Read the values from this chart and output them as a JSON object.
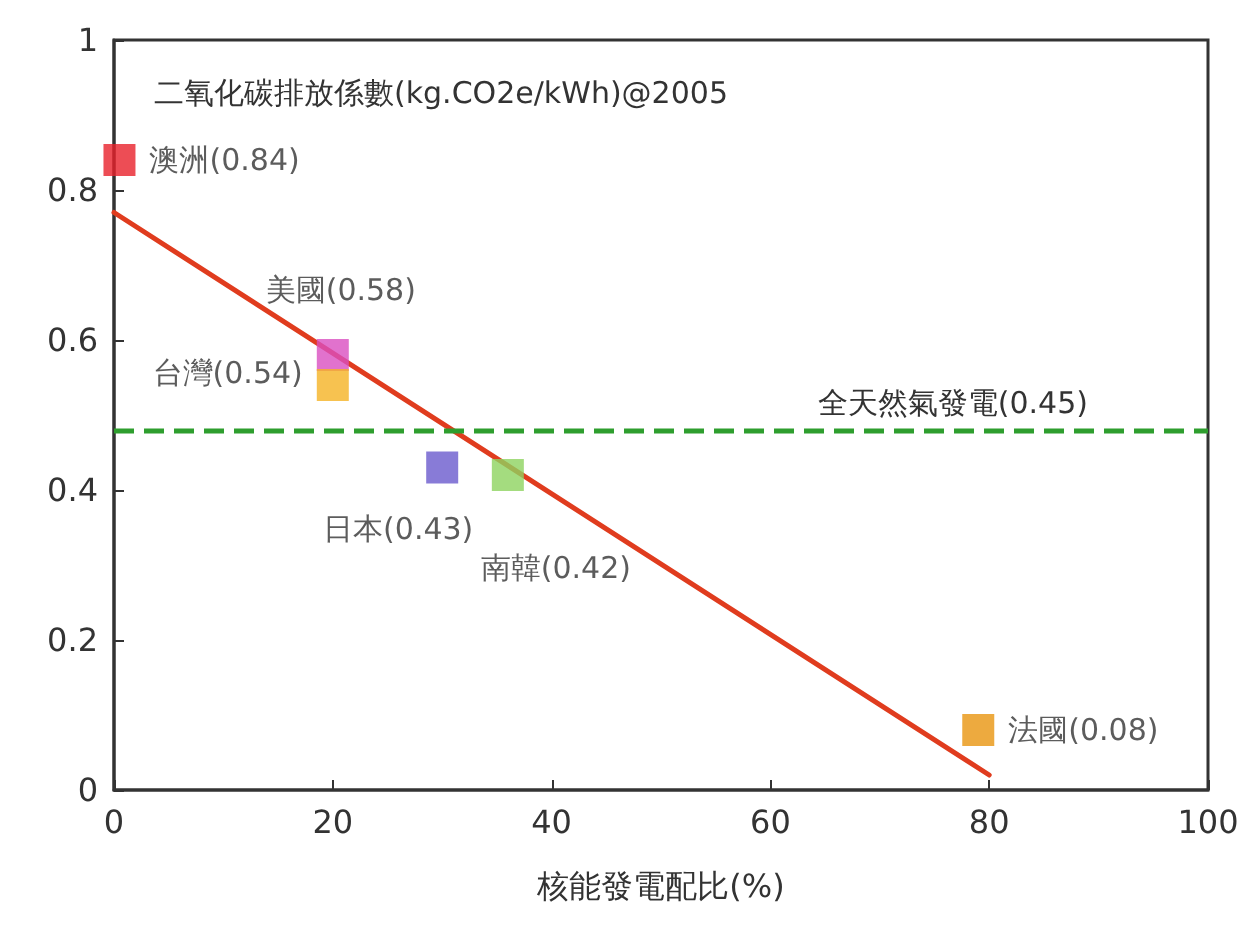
{
  "chart_data": {
    "type": "scatter",
    "title": "二氧化碳排放係數(kg.CO2e/kWh)@2005",
    "xlabel": "核能發電配比(%)",
    "xlim": [
      0,
      100
    ],
    "xticks": [
      0,
      20,
      40,
      60,
      80,
      100
    ],
    "ylim": [
      0,
      1
    ],
    "yticks": [
      0,
      {
        "value": 0.2,
        "label": "0.2"
      },
      {
        "value": 0.4,
        "label": "0.4"
      },
      {
        "value": 0.6,
        "label": "0.6"
      },
      {
        "value": 0.8,
        "label": "0.8"
      },
      1
    ],
    "grid": false,
    "series": [
      {
        "type": "scatter",
        "marker": "square",
        "x": [
          0.5,
          20,
          20,
          30,
          36,
          79
        ],
        "values": [
          0.84,
          0.58,
          0.54,
          0.43,
          0.42,
          0.08
        ],
        "colors": [
          "#e8202a",
          "#d94fc1",
          "#f5b324",
          "#6a5acd",
          "#8dd35f",
          "#e8950f"
        ],
        "value_labels": [
          "澳洲(0.84)",
          "美國(0.58)",
          "台灣(0.54)",
          "日本(0.43)",
          "南韓(0.42)",
          "法國(0.08)"
        ]
      },
      {
        "type": "line",
        "x": [
          0,
          80
        ],
        "values": [
          0.77,
          0.02
        ],
        "color": "#e03c1e",
        "line_style": "solid"
      }
    ],
    "ref_lines": [
      {
        "axis": "y",
        "value": 0.48,
        "label": "全天然氣發電(0.45)",
        "color": "#2e9e2e",
        "line_style": "dashed"
      }
    ]
  }
}
